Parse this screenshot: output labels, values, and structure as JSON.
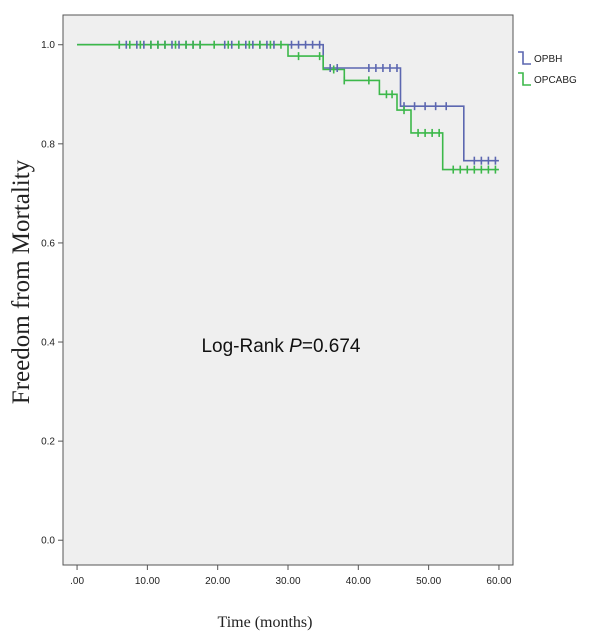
{
  "chart_data": {
    "type": "line",
    "subtype": "kaplan-meier step",
    "xlabel": "Time (months)",
    "ylabel": "Freedom from Mortality",
    "xlim": [
      -2,
      62
    ],
    "ylim": [
      -0.05,
      1.06
    ],
    "xticks": [
      0,
      10,
      20,
      30,
      40,
      50,
      60
    ],
    "xtick_labels": [
      ".00",
      "10.00",
      "20.00",
      "30.00",
      "40.00",
      "50.00",
      "60.00"
    ],
    "yticks": [
      0,
      0.2,
      0.4,
      0.6,
      0.8,
      1.0
    ],
    "ytick_labels": [
      "0.0",
      "0.2",
      "0.4",
      "0.6",
      "0.8",
      "1.0"
    ],
    "grid": false,
    "background": "#efefef",
    "legend_position": "right",
    "annotation": {
      "prefix": "Log-Rank ",
      "italic": "P",
      "suffix": "=0.674"
    },
    "series": [
      {
        "name": "OPBH",
        "color": "#5c67b0",
        "steps": [
          [
            0,
            1.0
          ],
          [
            35,
            0.953
          ],
          [
            46,
            0.876
          ],
          [
            55,
            0.766
          ],
          [
            60,
            0.766
          ]
        ],
        "censored": [
          6,
          7,
          8.5,
          9.5,
          10.5,
          11.5,
          12.5,
          13.5,
          14.5,
          15.5,
          16.5,
          17.5,
          21,
          22,
          23,
          24,
          25,
          26,
          27,
          28,
          30.5,
          31.5,
          32.5,
          33.5,
          34.5,
          36,
          37,
          41.5,
          42.5,
          43.5,
          44.5,
          45.5,
          46.5,
          48,
          49.5,
          51,
          52.5,
          56.5,
          57.5,
          58.5,
          59.5
        ]
      },
      {
        "name": "OPCABG",
        "color": "#3cb84a",
        "steps": [
          [
            0,
            1.0
          ],
          [
            30,
            0.977
          ],
          [
            35,
            0.95
          ],
          [
            38,
            0.928
          ],
          [
            43,
            0.9
          ],
          [
            45.5,
            0.868
          ],
          [
            47.5,
            0.822
          ],
          [
            52,
            0.748
          ],
          [
            60,
            0.748
          ]
        ],
        "censored": [
          6,
          7.5,
          9,
          10.5,
          11.5,
          12.5,
          14,
          15.5,
          16.5,
          17.5,
          19.5,
          21.5,
          23,
          24.5,
          26,
          27.5,
          29,
          31.5,
          34.5,
          36.5,
          38,
          41.5,
          44,
          44.8,
          46.5,
          48.5,
          49.5,
          50.5,
          51.5,
          53.5,
          54.5,
          55.5,
          56.5,
          57.5,
          58.5,
          59.5
        ]
      }
    ]
  }
}
